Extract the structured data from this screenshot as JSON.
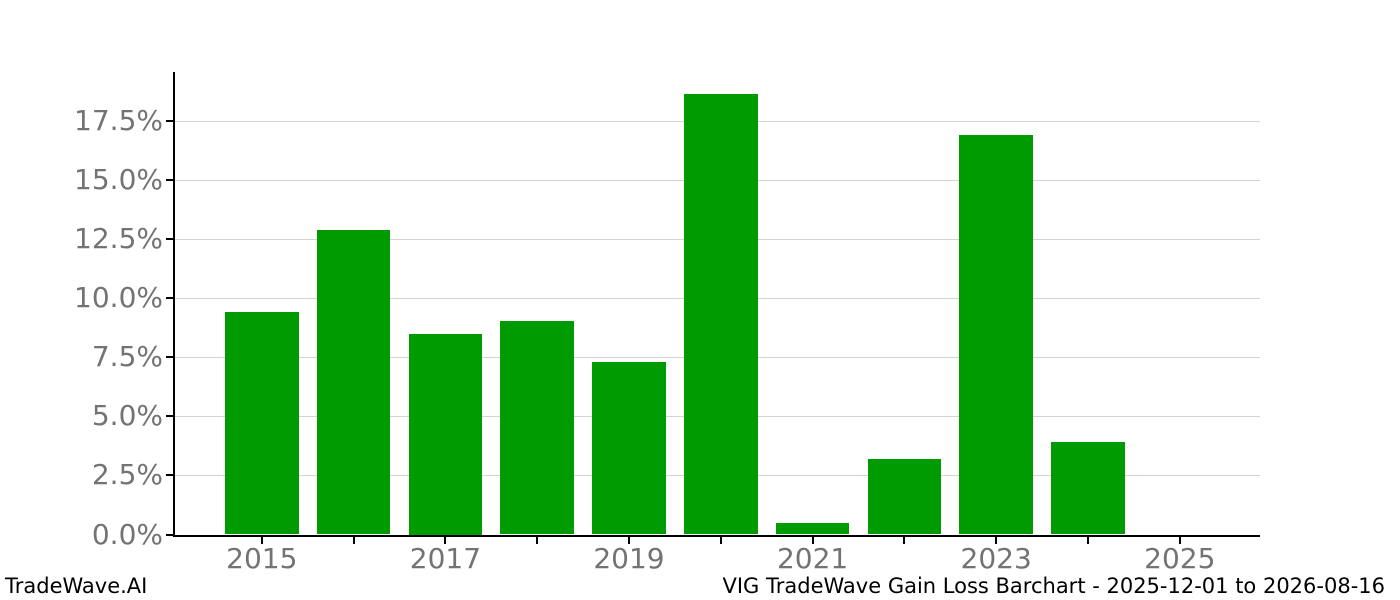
{
  "footer": {
    "left": "TradeWave.AI",
    "right": "VIG TradeWave Gain Loss Barchart - 2025-12-01 to 2026-08-16"
  },
  "colors": {
    "bar": "#009b00",
    "grid": "#d3d3d3",
    "tick_label": "#737373",
    "axis": "#000000"
  },
  "chart_data": {
    "type": "bar",
    "title": "VIG TradeWave Gain Loss Barchart - 2025-12-01 to 2026-08-16",
    "watermark": "TradeWave.AI",
    "categories": [
      "2015",
      "2016",
      "2017",
      "2018",
      "2019",
      "2020",
      "2021",
      "2022",
      "2023",
      "2024",
      "2025"
    ],
    "values": [
      9.4,
      12.88,
      8.5,
      9.04,
      7.3,
      18.66,
      0.48,
      3.2,
      16.91,
      3.91,
      0.0
    ],
    "unit": "%",
    "xlabel": "",
    "ylabel": "",
    "yticks": [
      0,
      2.5,
      5,
      7.5,
      10,
      12.5,
      15,
      17.5
    ],
    "ytick_labels": [
      "0.0%",
      "2.5%",
      "5.0%",
      "7.5%",
      "10.0%",
      "12.5%",
      "15.0%",
      "17.5%"
    ],
    "xtick_labels_visible": [
      "2015",
      "2017",
      "2019",
      "2021",
      "2023",
      "2025"
    ],
    "ylim": [
      0,
      19.6
    ],
    "grid": true,
    "legend": false,
    "bar_color": "#009b00"
  }
}
